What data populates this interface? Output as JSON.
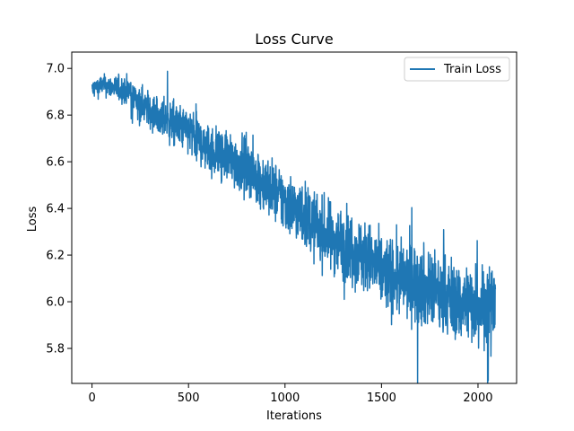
{
  "chart_data": {
    "type": "line",
    "title": "Loss Curve",
    "xlabel": "Iterations",
    "ylabel": "Loss",
    "xlim": [
      -105,
      2200
    ],
    "ylim": [
      5.65,
      7.07
    ],
    "xticks": [
      0,
      500,
      1000,
      1500,
      2000
    ],
    "yticks": [
      5.8,
      6.0,
      6.2,
      6.4,
      6.6,
      6.8,
      7.0
    ],
    "xtick_labels": [
      "0",
      "500",
      "1000",
      "1500",
      "2000"
    ],
    "ytick_labels": [
      "5.8",
      "6.0",
      "6.2",
      "6.4",
      "6.6",
      "6.8",
      "7.0"
    ],
    "legend_position": "upper-right",
    "grid": false,
    "series": [
      {
        "name": "Train Loss",
        "color": "#1f77b4",
        "x": [
          0,
          50,
          100,
          150,
          200,
          250,
          300,
          350,
          400,
          450,
          500,
          550,
          600,
          650,
          700,
          750,
          800,
          850,
          900,
          950,
          1000,
          1050,
          1100,
          1150,
          1200,
          1250,
          1300,
          1350,
          1400,
          1450,
          1500,
          1550,
          1600,
          1650,
          1700,
          1750,
          1800,
          1850,
          1900,
          1950,
          2000,
          2050,
          2090
        ],
        "y": [
          6.91,
          6.93,
          6.92,
          6.91,
          6.9,
          6.85,
          6.82,
          6.79,
          6.77,
          6.75,
          6.73,
          6.69,
          6.66,
          6.64,
          6.62,
          6.6,
          6.58,
          6.54,
          6.5,
          6.47,
          6.43,
          6.4,
          6.37,
          6.33,
          6.3,
          6.27,
          6.25,
          6.23,
          6.2,
          6.17,
          6.13,
          6.11,
          6.1,
          6.09,
          6.07,
          6.05,
          6.03,
          6.02,
          6.0,
          6.0,
          5.99,
          5.99,
          6.0
        ],
        "noise": [
          0.03,
          0.03,
          0.035,
          0.04,
          0.045,
          0.05,
          0.055,
          0.06,
          0.065,
          0.065,
          0.07,
          0.075,
          0.075,
          0.08,
          0.08,
          0.085,
          0.085,
          0.09,
          0.09,
          0.09,
          0.095,
          0.095,
          0.1,
          0.1,
          0.1,
          0.105,
          0.105,
          0.11,
          0.11,
          0.11,
          0.115,
          0.115,
          0.115,
          0.12,
          0.12,
          0.12,
          0.12,
          0.12,
          0.12,
          0.12,
          0.12,
          0.12,
          0.12
        ]
      }
    ]
  }
}
